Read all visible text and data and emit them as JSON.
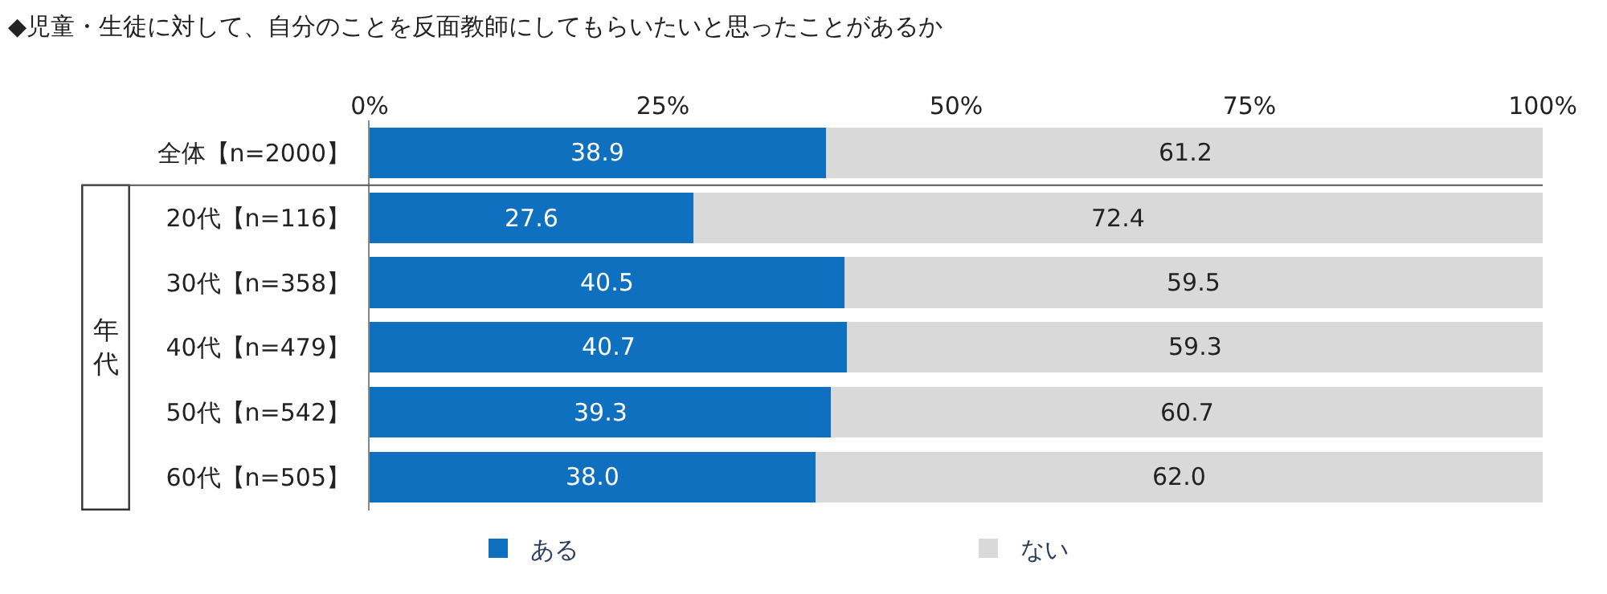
{
  "chart_data": {
    "type": "bar",
    "orientation": "horizontal",
    "stacked": true,
    "title": "◆児童・生徒に対して、自分のことを反面教師にしてもらいたいと思ったことがあるか",
    "categories": [
      "全体【n=2000】",
      "20代【n=116】",
      "30代【n=358】",
      "40代【n=479】",
      "50代【n=542】",
      "60代【n=505】"
    ],
    "series": [
      {
        "name": "ある",
        "color": "#1070c0",
        "values": [
          38.9,
          27.6,
          40.5,
          40.7,
          39.3,
          38.0
        ],
        "value_labels": [
          "38.9",
          "27.6",
          "40.5",
          "40.7",
          "39.3",
          "38.0"
        ]
      },
      {
        "name": "ない",
        "color": "#d9d9d9",
        "values": [
          61.2,
          72.4,
          59.5,
          59.3,
          60.7,
          62.0
        ],
        "value_labels": [
          "61.2",
          "72.4",
          "59.5",
          "59.3",
          "60.7",
          "62.0"
        ]
      }
    ],
    "xlim": [
      0,
      100
    ],
    "xticks": [
      {
        "value": 0,
        "label": "0%"
      },
      {
        "value": 25,
        "label": "25%"
      },
      {
        "value": 50,
        "label": "50%"
      },
      {
        "value": 75,
        "label": "75%"
      },
      {
        "value": 100,
        "label": "100%"
      }
    ],
    "annotations": [
      "年代"
    ],
    "legend": "bottom"
  }
}
